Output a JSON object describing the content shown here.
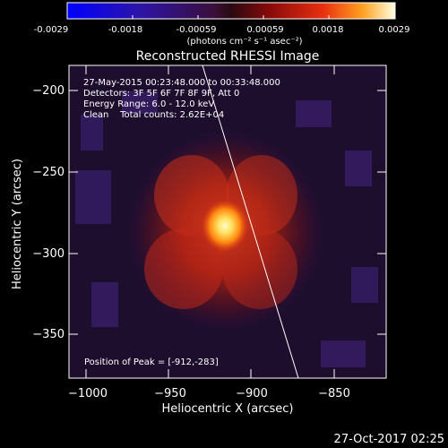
{
  "colorbar": {
    "ticks": [
      "-0.0029",
      "-0.0018",
      "-0.00059",
      "0.00059",
      "0.0018",
      "0.0029"
    ],
    "unit_label": "(photons cm⁻² s⁻¹ asec⁻²)",
    "range": [
      -0.0029,
      0.0029
    ]
  },
  "chart_data": {
    "type": "heatmap",
    "title": "Reconstructed RHESSI Image",
    "xlabel": "Heliocentric X (arcsec)",
    "ylabel": "Heliocentric Y (arcsec)",
    "xlim": [
      -1010,
      -820
    ],
    "ylim": [
      -377,
      -185
    ],
    "x_ticks": [
      -1000,
      -950,
      -900,
      -850
    ],
    "x_tick_labels": [
      "−1000",
      "−950",
      "−900",
      "−850"
    ],
    "y_ticks": [
      -200,
      -250,
      -300,
      -350
    ],
    "y_tick_labels": [
      "−200",
      "−250",
      "−300",
      "−350"
    ],
    "peak": [
      -912,
      -283
    ],
    "annotations": [
      "27-May-2015 00:23:48.000 to 00:33:48.000",
      "Detectors: 3F 5F 6F 7F 8F 9F, Att 0",
      "Energy Range: 6.0 - 12.0 keV",
      "Clean    Total counts: 2.62E+04"
    ],
    "peak_label": "Position of Peak = [-912,-283]",
    "limb_line": [
      [
        -936,
        -185
      ],
      [
        -870,
        -377
      ]
    ]
  },
  "footer": {
    "timestamp": "27-Oct-2017 02:25"
  }
}
